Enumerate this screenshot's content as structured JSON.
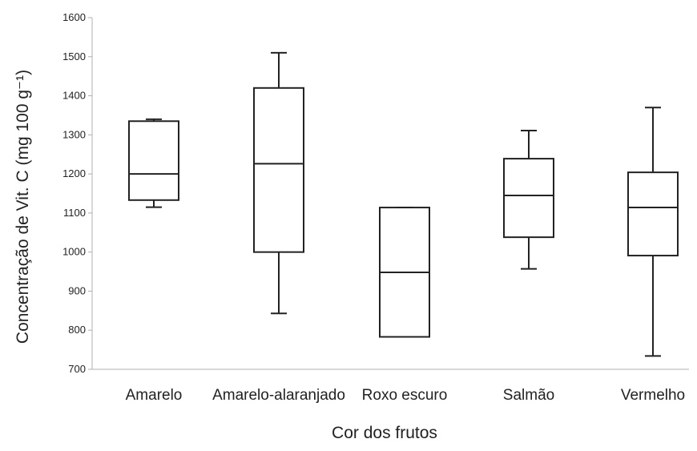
{
  "chart_data": {
    "type": "boxplot",
    "title": "",
    "xlabel": "Cor dos frutos",
    "ylabel": "Concentração de Vit. C (mg 100 g⁻¹)",
    "ylim": [
      700,
      1600
    ],
    "yticks": [
      700,
      800,
      900,
      1000,
      1100,
      1200,
      1300,
      1400,
      1500,
      1600
    ],
    "grid": false,
    "categories": [
      "Amarelo",
      "Amarelo-alaranjado",
      "Roxo escuro",
      "Salmão",
      "Vermelho"
    ],
    "boxes": [
      {
        "category": "Amarelo",
        "min": 1115,
        "q1": 1133,
        "median": 1200,
        "q3": 1335,
        "max": 1340
      },
      {
        "category": "Amarelo-alaranjado",
        "min": 843,
        "q1": 1000,
        "median": 1226,
        "q3": 1420,
        "max": 1510
      },
      {
        "category": "Roxo escuro",
        "min": 783,
        "q1": 783,
        "median": 948,
        "q3": 1114,
        "max": 1114
      },
      {
        "category": "Salmão",
        "min": 957,
        "q1": 1038,
        "median": 1145,
        "q3": 1239,
        "max": 1311
      },
      {
        "category": "Vermelho",
        "min": 734,
        "q1": 991,
        "median": 1114,
        "q3": 1204,
        "max": 1370
      }
    ]
  },
  "colors": {
    "stroke": "#222222",
    "box_fill": "#ffffff",
    "axis": "#b0b0b0"
  }
}
